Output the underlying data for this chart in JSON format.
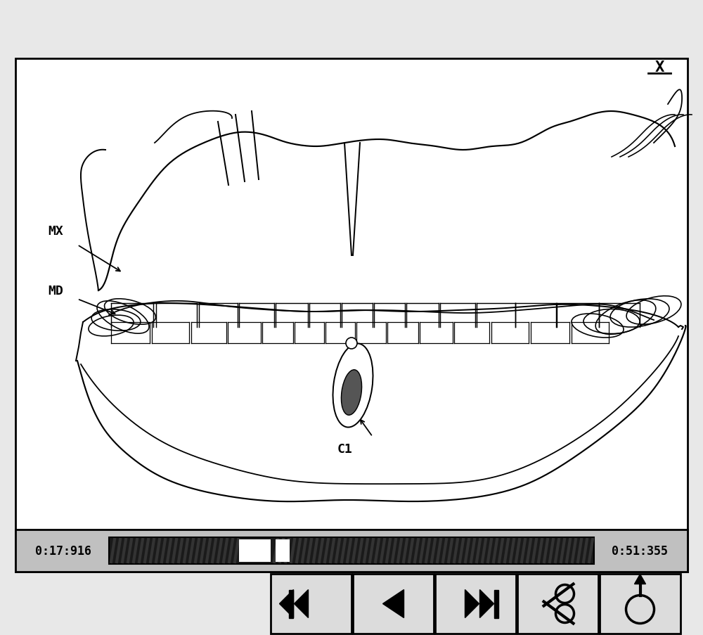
{
  "bg_color": "#e8e8e8",
  "frame_bg": "#ffffff",
  "mx_label": "MX",
  "md_label": "MD",
  "c1_label": "C1",
  "time_left": "0:17:916",
  "time_right": "0:51:355",
  "lw": 1.3
}
